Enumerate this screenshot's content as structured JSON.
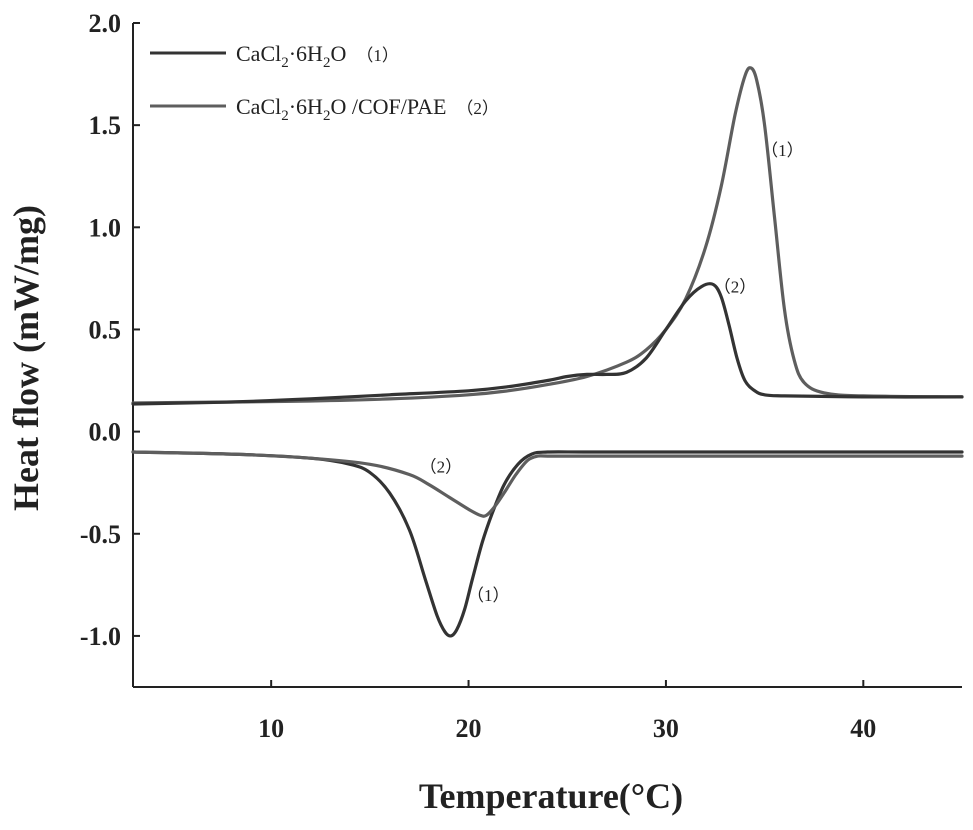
{
  "chart_data": {
    "type": "line",
    "title": "",
    "xlabel": "Temperature(°C)",
    "ylabel": "Heat flow (mW/mg)",
    "xlim": [
      3,
      45
    ],
    "ylim": [
      -1.25,
      2.0
    ],
    "xticks": [
      10,
      20,
      30,
      40
    ],
    "yticks": [
      -1.0,
      -0.5,
      0.0,
      0.5,
      1.0,
      1.5,
      2.0
    ],
    "ytick_labels": [
      "-1.0",
      "-0.5",
      "0.0",
      "0.5",
      "1.0",
      "1.5",
      "2.0"
    ],
    "grid": false,
    "legend_position": "top-left",
    "legend": [
      {
        "name": "CaCl2·6H2O",
        "base": "CaCl",
        "sub1": "2",
        "mid": "·6H",
        "sub2": "2",
        "tail": "O",
        "tag": "（1）",
        "color": "#333333"
      },
      {
        "name": "CaCl2·6H2O/COF/PAE",
        "base": "CaCl",
        "sub1": "2",
        "mid": "·6H",
        "sub2": "2",
        "tail": "O /COF/PAE",
        "tag": "（2）",
        "color": "#5e5e5e"
      }
    ],
    "series": [
      {
        "name": "CaCl2·6H2O heating (1)",
        "color": "#5e5e5e",
        "x": [
          3,
          8,
          12,
          16,
          20,
          22,
          24,
          26,
          28,
          29,
          30,
          31,
          32,
          32.8,
          33.5,
          34.0,
          34.3,
          34.6,
          35.0,
          35.5,
          36.0,
          36.5,
          37.0,
          38.0,
          40,
          45
        ],
        "y": [
          0.14,
          0.145,
          0.15,
          0.16,
          0.18,
          0.2,
          0.23,
          0.27,
          0.34,
          0.4,
          0.5,
          0.65,
          0.9,
          1.2,
          1.55,
          1.74,
          1.78,
          1.72,
          1.5,
          1.05,
          0.6,
          0.35,
          0.24,
          0.19,
          0.175,
          0.17
        ]
      },
      {
        "name": "CaCl2·6H2O/COF/PAE heating (2)",
        "color": "#333333",
        "x": [
          3,
          8,
          12,
          16,
          20,
          22,
          24,
          25,
          26,
          27,
          28,
          29,
          30,
          31,
          31.8,
          32.4,
          32.8,
          33.2,
          33.6,
          34.0,
          34.5,
          35,
          36,
          40,
          45
        ],
        "y": [
          0.135,
          0.145,
          0.16,
          0.18,
          0.2,
          0.22,
          0.25,
          0.27,
          0.28,
          0.28,
          0.29,
          0.36,
          0.5,
          0.64,
          0.71,
          0.72,
          0.66,
          0.52,
          0.36,
          0.25,
          0.2,
          0.18,
          0.175,
          0.17,
          0.17
        ]
      },
      {
        "name": "CaCl2·6H2O cooling (1)",
        "color": "#333333",
        "x": [
          3,
          8,
          12,
          14,
          15,
          16,
          17,
          17.8,
          18.4,
          18.8,
          19.1,
          19.4,
          19.8,
          20.2,
          20.7,
          21.2,
          21.8,
          22.5,
          23.2,
          24,
          26,
          30,
          40,
          45
        ],
        "y": [
          -0.1,
          -0.11,
          -0.13,
          -0.16,
          -0.2,
          -0.3,
          -0.48,
          -0.72,
          -0.9,
          -0.98,
          -1.0,
          -0.97,
          -0.87,
          -0.72,
          -0.54,
          -0.4,
          -0.26,
          -0.16,
          -0.11,
          -0.1,
          -0.1,
          -0.1,
          -0.1,
          -0.1
        ]
      },
      {
        "name": "CaCl2·6H2O/COF/PAE cooling (2)",
        "color": "#5e5e5e",
        "x": [
          3,
          8,
          12,
          15,
          17,
          18,
          19,
          20,
          20.6,
          20.9,
          21.3,
          21.8,
          22.4,
          23,
          23.5,
          24,
          26,
          30,
          40,
          45
        ],
        "y": [
          -0.1,
          -0.11,
          -0.13,
          -0.16,
          -0.21,
          -0.26,
          -0.32,
          -0.38,
          -0.41,
          -0.41,
          -0.37,
          -0.3,
          -0.21,
          -0.14,
          -0.12,
          -0.12,
          -0.12,
          -0.12,
          -0.12,
          -0.12
        ]
      }
    ],
    "annotations": [
      {
        "text": "（1）",
        "x": 35.9,
        "y": 1.35
      },
      {
        "text": "（2）",
        "x": 33.5,
        "y": 0.68
      },
      {
        "text": "（2）",
        "x": 18.6,
        "y": -0.2
      },
      {
        "text": "（1）",
        "x": 21.0,
        "y": -0.83
      }
    ]
  }
}
